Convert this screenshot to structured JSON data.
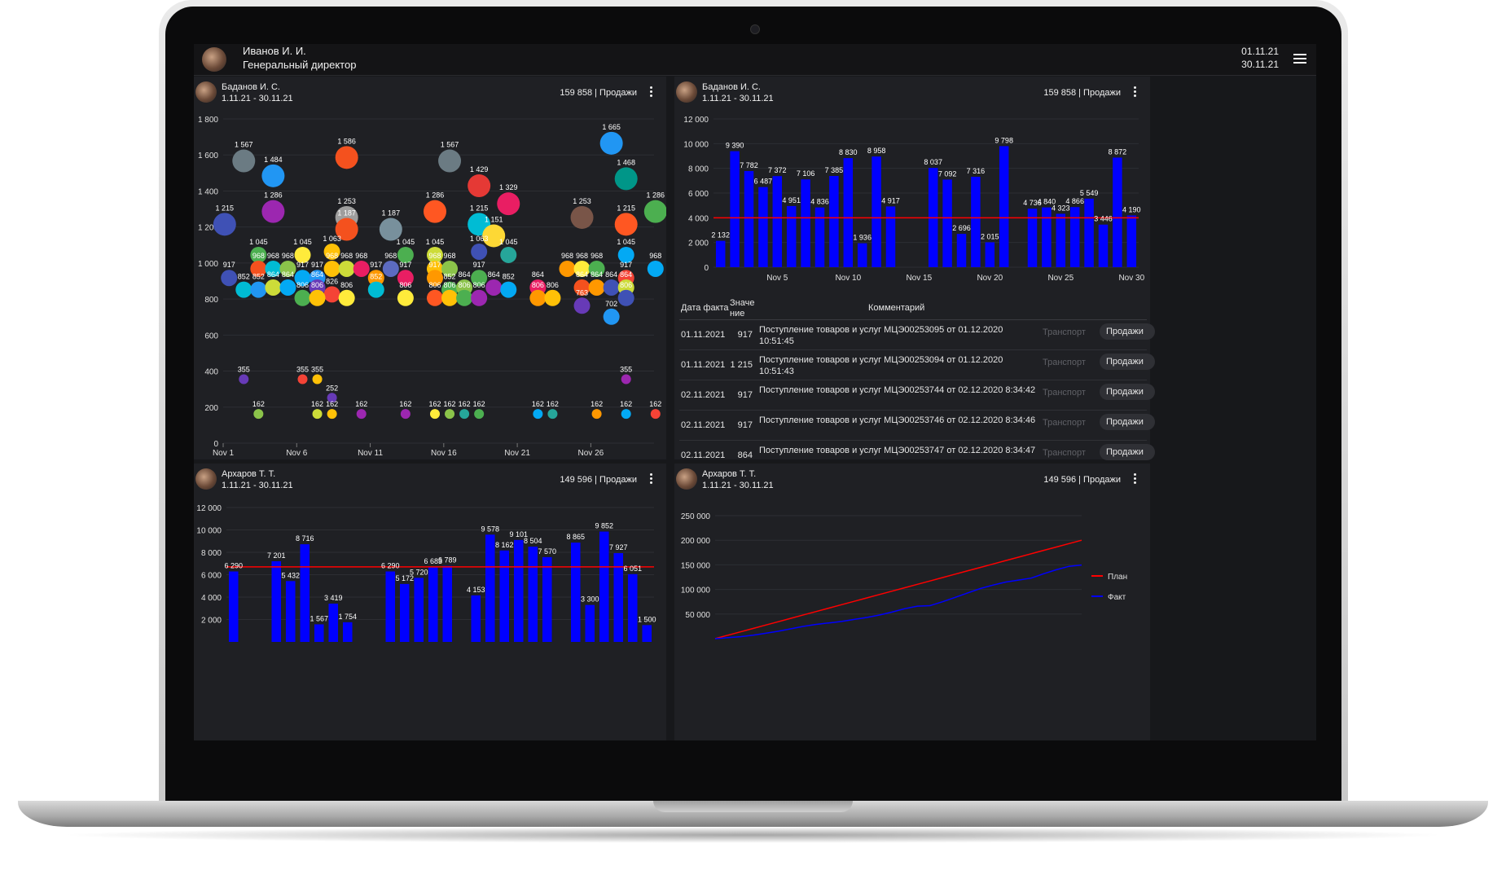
{
  "header": {
    "user_name": "Иванов И. И.",
    "user_role": "Генеральный директор",
    "date_from": "01.11.21",
    "date_to": "30.11.21"
  },
  "panels": [
    {
      "name": "Баданов И. С.",
      "dates": "1.11.21 - 30.11.21",
      "total": "159 858 | Продажи"
    },
    {
      "name": "Баданов И. С.",
      "dates": "1.11.21 - 30.11.21",
      "total": "159 858 | Продажи"
    },
    {
      "name": "Архаров Т. Т.",
      "dates": "1.11.21 - 30.11.21",
      "total": "149 596 | Продажи"
    },
    {
      "name": "Архаров Т. Т.",
      "dates": "1.11.21 - 30.11.21",
      "total": "149 596 | Продажи"
    }
  ],
  "table": {
    "headers": {
      "date": "Дата факта",
      "value": "Значе ние",
      "comment": "Комментарий"
    },
    "rows": [
      {
        "date": "01.11.2021",
        "value": "917",
        "comment": "Поступление товаров и услуг МЦЭ00253095 от 01.12.2020 10:51:45",
        "tag": "Транспорт",
        "button": "Продажи"
      },
      {
        "date": "01.11.2021",
        "value": "1 215",
        "comment": "Поступление товаров и услуг МЦЭ00253094 от 01.12.2020 10:51:43",
        "tag": "Транспорт",
        "button": "Продажи"
      },
      {
        "date": "02.11.2021",
        "value": "917",
        "comment": "Поступление товаров и услуг МЦЭ00253744 от 02.12.2020 8:34:42",
        "tag": "Транспорт",
        "button": "Продажи"
      },
      {
        "date": "02.11.2021",
        "value": "917",
        "comment": "Поступление товаров и услуг МЦЭ00253746 от 02.12.2020 8:34:46",
        "tag": "Транспорт",
        "button": "Продажи"
      },
      {
        "date": "02.11.2021",
        "value": "864",
        "comment": "Поступление товаров и услуг МЦЭ00253747 от 02.12.2020 8:34:47",
        "tag": "Транспорт",
        "button": "Продажи"
      }
    ]
  },
  "chart_data": [
    {
      "type": "scatter",
      "ylim": [
        0,
        1800
      ],
      "yticks": [
        "0",
        "200",
        "400",
        "600",
        "800",
        "1 000",
        "1 200",
        "1 400",
        "1 600",
        "1 800"
      ],
      "xticks": [
        {
          "day": 1,
          "label": "Nov 1"
        },
        {
          "day": 6,
          "label": "Nov 6"
        },
        {
          "day": 11,
          "label": "Nov 11"
        },
        {
          "day": 16,
          "label": "Nov 16"
        },
        {
          "day": 21,
          "label": "Nov 21"
        },
        {
          "day": 26,
          "label": "Nov 26"
        }
      ],
      "points": [
        {
          "x": 2.4,
          "y": 1567,
          "label": "1 567",
          "color": "#6b7b83"
        },
        {
          "x": 4.4,
          "y": 1484,
          "label": "1 484",
          "color": "#2196f3"
        },
        {
          "x": 4.4,
          "y": 1286,
          "label": "1 286",
          "color": "#9c27b0"
        },
        {
          "x": 1.1,
          "y": 1215,
          "label": "1 215",
          "color": "#3f51b5"
        },
        {
          "x": 9.4,
          "y": 1586,
          "label": "1 586",
          "color": "#f4511e"
        },
        {
          "x": 9.4,
          "y": 1253,
          "label": "1 253",
          "color": "#9e9e9e"
        },
        {
          "x": 9.4,
          "y": 1187,
          "label": "1 187",
          "color": "#f4511e"
        },
        {
          "x": 12.4,
          "y": 1187,
          "label": "1 187",
          "color": "#78909c"
        },
        {
          "x": 16.4,
          "y": 1567,
          "label": "1 567",
          "color": "#6b7b83"
        },
        {
          "x": 15.4,
          "y": 1286,
          "label": "1 286",
          "color": "#ff5722"
        },
        {
          "x": 18.4,
          "y": 1429,
          "label": "1 429",
          "color": "#e53935"
        },
        {
          "x": 20.4,
          "y": 1329,
          "label": "1 329",
          "color": "#e91e63"
        },
        {
          "x": 18.4,
          "y": 1215,
          "label": "1 215",
          "color": "#00bcd4"
        },
        {
          "x": 19.4,
          "y": 1151,
          "label": "1 151",
          "color": "#fdd835"
        },
        {
          "x": 25.4,
          "y": 1253,
          "label": "1 253",
          "color": "#795548"
        },
        {
          "x": 27.4,
          "y": 1665,
          "label": "1 665",
          "color": "#2196f3"
        },
        {
          "x": 28.4,
          "y": 1468,
          "label": "1 468",
          "color": "#009688"
        },
        {
          "x": 28.4,
          "y": 1215,
          "label": "1 215",
          "color": "#ff5722"
        },
        {
          "x": 30.4,
          "y": 1286,
          "label": "1 286",
          "color": "#4caf50"
        },
        {
          "x": 3.4,
          "y": 1045,
          "label": "1 045",
          "color": "#4caf50"
        },
        {
          "x": 6.4,
          "y": 1045,
          "label": "1 045",
          "color": "#ffeb3b"
        },
        {
          "x": 8.4,
          "y": 1063,
          "label": "1 063",
          "color": "#ffc107"
        },
        {
          "x": 13.4,
          "y": 1045,
          "label": "1 045",
          "color": "#4caf50"
        },
        {
          "x": 15.4,
          "y": 1045,
          "label": "1 045",
          "color": "#cddc39"
        },
        {
          "x": 18.4,
          "y": 1063,
          "label": "1 063",
          "color": "#3f51b5"
        },
        {
          "x": 20.4,
          "y": 1045,
          "label": "1 045",
          "color": "#26a69a"
        },
        {
          "x": 28.4,
          "y": 1045,
          "label": "1 045",
          "color": "#03a9f4"
        },
        {
          "x": 3.4,
          "y": 968,
          "label": "968",
          "color": "#f4511e"
        },
        {
          "x": 4.4,
          "y": 968,
          "label": "968",
          "color": "#00bcd4"
        },
        {
          "x": 5.4,
          "y": 968,
          "label": "968",
          "color": "#8bc34a"
        },
        {
          "x": 8.4,
          "y": 968,
          "label": "968",
          "color": "#ffc107"
        },
        {
          "x": 9.4,
          "y": 968,
          "label": "968",
          "color": "#cddc39"
        },
        {
          "x": 10.4,
          "y": 968,
          "label": "968",
          "color": "#e91e63"
        },
        {
          "x": 12.4,
          "y": 968,
          "label": "968",
          "color": "#5c6bc0"
        },
        {
          "x": 15.4,
          "y": 968,
          "label": "968",
          "color": "#ffc107"
        },
        {
          "x": 16.4,
          "y": 968,
          "label": "968",
          "color": "#8bc34a"
        },
        {
          "x": 24.4,
          "y": 968,
          "label": "968",
          "color": "#ff9800"
        },
        {
          "x": 25.4,
          "y": 968,
          "label": "968",
          "color": "#ffeb3b"
        },
        {
          "x": 26.4,
          "y": 968,
          "label": "968",
          "color": "#4caf50"
        },
        {
          "x": 30.4,
          "y": 968,
          "label": "968",
          "color": "#03a9f4"
        },
        {
          "x": 1.4,
          "y": 917,
          "label": "917",
          "color": "#3f51b5"
        },
        {
          "x": 6.4,
          "y": 917,
          "label": "917",
          "color": "#03a9f4"
        },
        {
          "x": 7.4,
          "y": 917,
          "label": "917",
          "color": "#2196f3"
        },
        {
          "x": 11.4,
          "y": 917,
          "label": "917",
          "color": "#ff9800"
        },
        {
          "x": 13.4,
          "y": 917,
          "label": "917",
          "color": "#e91e63"
        },
        {
          "x": 15.4,
          "y": 917,
          "label": "917",
          "color": "#ff9800"
        },
        {
          "x": 18.4,
          "y": 917,
          "label": "917",
          "color": "#4caf50"
        },
        {
          "x": 28.4,
          "y": 917,
          "label": "917",
          "color": "#f44336"
        },
        {
          "x": 2.4,
          "y": 852,
          "label": "852",
          "color": "#00bcd4"
        },
        {
          "x": 3.4,
          "y": 852,
          "label": "852",
          "color": "#2196f3"
        },
        {
          "x": 4.4,
          "y": 864,
          "label": "864",
          "color": "#cddc39"
        },
        {
          "x": 5.4,
          "y": 864,
          "label": "864",
          "color": "#03a9f4"
        },
        {
          "x": 7.4,
          "y": 864,
          "label": "864",
          "color": "#673ab7"
        },
        {
          "x": 8.4,
          "y": 826,
          "label": "826",
          "color": "#f44336"
        },
        {
          "x": 11.4,
          "y": 852,
          "label": "852",
          "color": "#00bcd4"
        },
        {
          "x": 16.4,
          "y": 852,
          "label": "852",
          "color": "#4caf50"
        },
        {
          "x": 17.4,
          "y": 864,
          "label": "864",
          "color": "#8bc34a"
        },
        {
          "x": 19.4,
          "y": 864,
          "label": "864",
          "color": "#9c27b0"
        },
        {
          "x": 20.4,
          "y": 852,
          "label": "852",
          "color": "#03a9f4"
        },
        {
          "x": 22.4,
          "y": 864,
          "label": "864",
          "color": "#e91e63"
        },
        {
          "x": 25.4,
          "y": 864,
          "label": "864",
          "color": "#f4511e"
        },
        {
          "x": 26.4,
          "y": 864,
          "label": "864",
          "color": "#ff9800"
        },
        {
          "x": 27.4,
          "y": 864,
          "label": "864",
          "color": "#3f51b5"
        },
        {
          "x": 28.4,
          "y": 864,
          "label": "864",
          "color": "#cddc39"
        },
        {
          "x": 6.4,
          "y": 806,
          "label": "806",
          "color": "#4caf50"
        },
        {
          "x": 7.4,
          "y": 806,
          "label": "806",
          "color": "#ffc107"
        },
        {
          "x": 9.4,
          "y": 806,
          "label": "806",
          "color": "#ffeb3b"
        },
        {
          "x": 13.4,
          "y": 806,
          "label": "806",
          "color": "#ffeb3b"
        },
        {
          "x": 15.4,
          "y": 806,
          "label": "806",
          "color": "#ff5722"
        },
        {
          "x": 16.4,
          "y": 806,
          "label": "806",
          "color": "#ffc107"
        },
        {
          "x": 17.4,
          "y": 806,
          "label": "806",
          "color": "#4caf50"
        },
        {
          "x": 18.4,
          "y": 806,
          "label": "806",
          "color": "#9c27b0"
        },
        {
          "x": 22.4,
          "y": 806,
          "label": "806",
          "color": "#ff9800"
        },
        {
          "x": 23.4,
          "y": 806,
          "label": "806",
          "color": "#ffc107"
        },
        {
          "x": 25.4,
          "y": 763,
          "label": "763",
          "color": "#673ab7"
        },
        {
          "x": 28.4,
          "y": 806,
          "label": "806",
          "color": "#3f51b5"
        },
        {
          "x": 27.4,
          "y": 702,
          "label": "702",
          "color": "#2196f3"
        },
        {
          "x": 2.4,
          "y": 355,
          "label": "355",
          "color": "#673ab7"
        },
        {
          "x": 6.4,
          "y": 355,
          "label": "355",
          "color": "#f44336"
        },
        {
          "x": 7.4,
          "y": 355,
          "label": "355",
          "color": "#ffc107"
        },
        {
          "x": 28.4,
          "y": 355,
          "label": "355",
          "color": "#9c27b0"
        },
        {
          "x": 8.4,
          "y": 252,
          "label": "252",
          "color": "#673ab7"
        },
        {
          "x": 3.4,
          "y": 162,
          "label": "162",
          "color": "#8bc34a"
        },
        {
          "x": 7.4,
          "y": 162,
          "label": "162",
          "color": "#cddc39"
        },
        {
          "x": 8.4,
          "y": 162,
          "label": "162",
          "color": "#ffc107"
        },
        {
          "x": 10.4,
          "y": 162,
          "label": "162",
          "color": "#9c27b0"
        },
        {
          "x": 13.4,
          "y": 162,
          "label": "162",
          "color": "#9c27b0"
        },
        {
          "x": 15.4,
          "y": 162,
          "label": "162",
          "color": "#ffeb3b"
        },
        {
          "x": 16.4,
          "y": 162,
          "label": "162",
          "color": "#8bc34a"
        },
        {
          "x": 17.4,
          "y": 162,
          "label": "162",
          "color": "#26a69a"
        },
        {
          "x": 18.4,
          "y": 162,
          "label": "162",
          "color": "#4caf50"
        },
        {
          "x": 22.4,
          "y": 162,
          "label": "162",
          "color": "#03a9f4"
        },
        {
          "x": 23.4,
          "y": 162,
          "label": "162",
          "color": "#26a69a"
        },
        {
          "x": 26.4,
          "y": 162,
          "label": "162",
          "color": "#ff9800"
        },
        {
          "x": 28.4,
          "y": 162,
          "label": "162",
          "color": "#03a9f4"
        },
        {
          "x": 30.4,
          "y": 162,
          "label": "162",
          "color": "#f44336"
        }
      ]
    },
    {
      "type": "bar",
      "ylim": [
        0,
        12000
      ],
      "yticks": [
        "0",
        "2 000",
        "4 000",
        "6 000",
        "8 000",
        "10 000",
        "12 000"
      ],
      "xticks": [
        {
          "day": 5,
          "label": "Nov 5"
        },
        {
          "day": 10,
          "label": "Nov 10"
        },
        {
          "day": 15,
          "label": "Nov 15"
        },
        {
          "day": 20,
          "label": "Nov 20"
        },
        {
          "day": 25,
          "label": "Nov 25"
        },
        {
          "day": 30,
          "label": "Nov 30"
        }
      ],
      "plan": 4000,
      "bar_color": "#0000ff",
      "line_color": "#ff0000",
      "values": [
        2132,
        9390,
        7782,
        6487,
        7372,
        4951,
        7106,
        4836,
        7385,
        8830,
        1936,
        8958,
        4917,
        null,
        null,
        8037,
        7092,
        2696,
        7316,
        2015,
        9798,
        null,
        4736,
        4840,
        4323,
        4866,
        5549,
        3446,
        8872,
        4190
      ],
      "labels": [
        "2 132",
        "9 390",
        "7 782",
        "6 487",
        "7 372",
        "4 951",
        "7 106",
        "4 836",
        "7 385",
        "8 830",
        "1 936",
        "8 958",
        "4 917",
        "",
        "",
        "8 037",
        "7 092",
        "2 696",
        "7 316",
        "2 015",
        "9 798",
        "",
        "4 736",
        "4 840",
        "4 323",
        "4 866",
        "5 549",
        "3 446",
        "8 872",
        "4 190"
      ]
    },
    {
      "type": "bar",
      "ylim": [
        0,
        12000
      ],
      "yticks": [
        "2 000",
        "4 000",
        "6 000",
        "8 000",
        "10 000",
        "12 000"
      ],
      "plan": 6700,
      "bar_color": "#0000ff",
      "line_color": "#ff0000",
      "values": [
        6290,
        null,
        null,
        7201,
        5432,
        8716,
        1567,
        3419,
        1754,
        null,
        null,
        6290,
        5172,
        5720,
        6683,
        6789,
        null,
        4153,
        9578,
        8162,
        9101,
        8504,
        7570,
        null,
        8865,
        3300,
        9852,
        7927,
        6051,
        1500
      ],
      "labels": [
        "6 290",
        "",
        "",
        "7 201",
        "5 432",
        "8 716",
        "1 567",
        "3 419",
        "1 754",
        "",
        "",
        "6 290",
        "5 172",
        "5 720",
        "6 683",
        "6 789",
        "",
        "4 153",
        "9 578",
        "8 162",
        "9 101",
        "8 504",
        "7 570",
        "",
        "8 865",
        "3 300",
        "9 852",
        "7 927",
        "6 051",
        "1 500"
      ]
    },
    {
      "type": "line",
      "ylim": [
        0,
        250000
      ],
      "yticks": [
        "50 000",
        "100 000",
        "150 000",
        "200 000",
        "250 000"
      ],
      "series": [
        {
          "name": "План",
          "color": "#ff0000",
          "values": [
            0,
            6900,
            13800,
            20700,
            27600,
            34500,
            41400,
            48300,
            55200,
            62100,
            69000,
            75900,
            82800,
            89700,
            96600,
            103500,
            110400,
            117300,
            124200,
            131100,
            138000,
            144900,
            151800,
            158700,
            165600,
            172500,
            179400,
            186300,
            193200,
            200000
          ]
        },
        {
          "name": "Факт",
          "color": "#0000ff",
          "values": [
            0,
            2000,
            4000,
            7000,
            11000,
            15000,
            20000,
            25000,
            29000,
            32000,
            35000,
            39000,
            43000,
            48000,
            54000,
            61000,
            66000,
            67000,
            75000,
            84000,
            93000,
            102000,
            109000,
            115000,
            119000,
            123000,
            132000,
            140000,
            147000,
            149596
          ]
        }
      ]
    }
  ]
}
